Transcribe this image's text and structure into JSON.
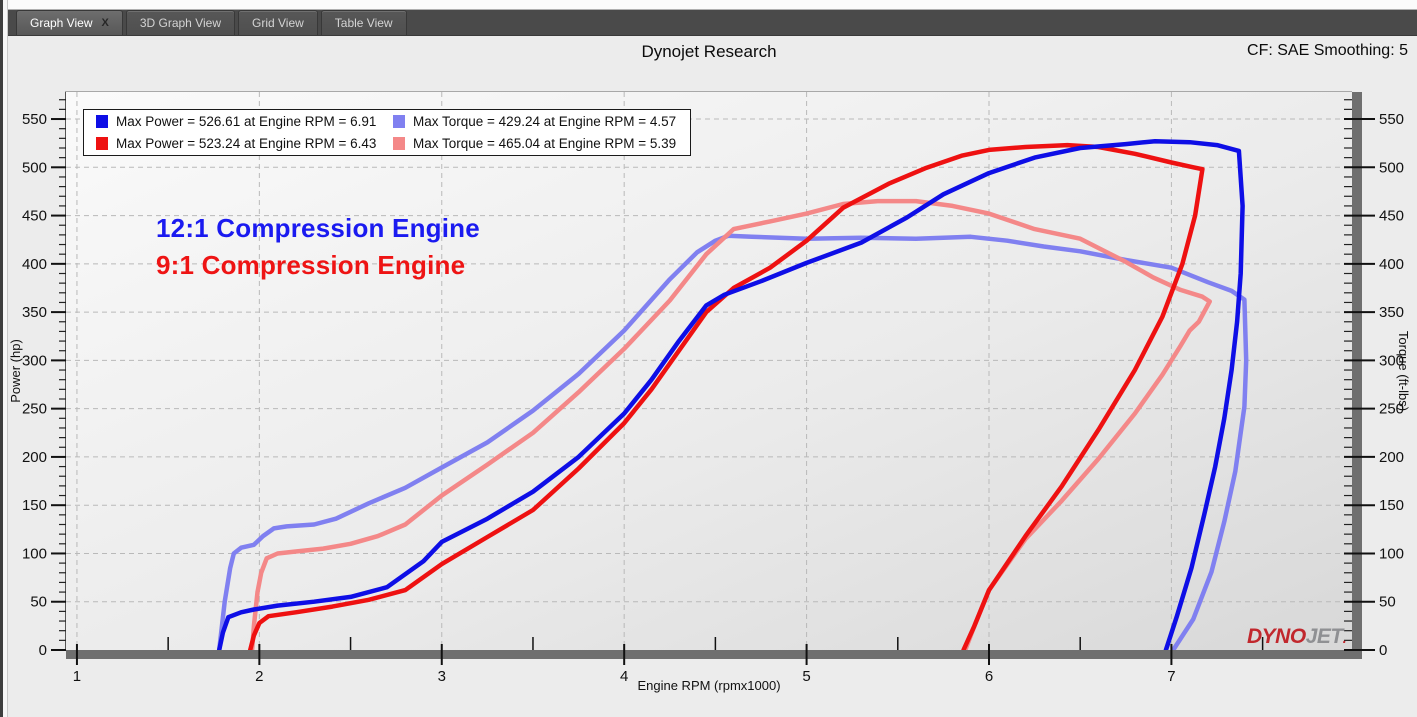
{
  "tabs": [
    {
      "label": "Graph View",
      "active": true,
      "closable": true
    },
    {
      "label": "3D Graph View",
      "active": false,
      "closable": false
    },
    {
      "label": "Grid View",
      "active": false,
      "closable": false
    },
    {
      "label": "Table View",
      "active": false,
      "closable": false
    }
  ],
  "header": {
    "title": "Dynojet Research",
    "cf_label": "CF: SAE Smoothing: 5"
  },
  "annotations": [
    {
      "text": "12:1 Compression Engine",
      "color": "#1a1af0"
    },
    {
      "text": "9:1 Compression Engine",
      "color": "#ee1414"
    }
  ],
  "logo": {
    "text_red": "DYNO",
    "text_gray": "JET",
    "dot": "."
  },
  "chart_data": {
    "type": "line",
    "title": "Dynojet Research",
    "xlabel": "Engine RPM (rpmx1000)",
    "ylabel_left": "Power (hp)",
    "ylabel_right": "Torque (ft-lbs)",
    "x_range": [
      0.94,
      7.99
    ],
    "y_range": [
      0,
      578
    ],
    "x_major_ticks": [
      1,
      2,
      3,
      4,
      5,
      6,
      7
    ],
    "x_minor_ticks": [
      1.5,
      2.5,
      3.5,
      4.5,
      5.5,
      6.5,
      7.5
    ],
    "y_major_ticks": [
      0,
      50,
      100,
      150,
      200,
      250,
      300,
      350,
      400,
      450,
      500,
      550
    ],
    "y_minor_step": 10,
    "grid": "dashed",
    "legend_position": "top-left",
    "legend": [
      {
        "series": "power-12-1",
        "label": "Max Power = 526.61 at Engine RPM = 6.91"
      },
      {
        "series": "power-9-1",
        "label": "Max Power = 523.24 at Engine RPM = 6.43"
      },
      {
        "series": "torque-12-1",
        "label": "Max Torque = 429.24 at Engine RPM = 4.57"
      },
      {
        "series": "torque-9-1",
        "label": "Max Torque = 465.04 at Engine RPM = 5.39"
      }
    ],
    "series": [
      {
        "name": "torque-12-1",
        "color": "#8080f0",
        "axis": "right",
        "max": 429.24,
        "max_rpm": 4.57,
        "points": [
          [
            1.78,
            0
          ],
          [
            1.81,
            50
          ],
          [
            1.84,
            85
          ],
          [
            1.86,
            100
          ],
          [
            1.9,
            106
          ],
          [
            1.97,
            109
          ],
          [
            2.02,
            118
          ],
          [
            2.08,
            126
          ],
          [
            2.15,
            128
          ],
          [
            2.3,
            130
          ],
          [
            2.42,
            136
          ],
          [
            2.6,
            152
          ],
          [
            2.8,
            168
          ],
          [
            3.0,
            189
          ],
          [
            3.25,
            215
          ],
          [
            3.5,
            248
          ],
          [
            3.75,
            286
          ],
          [
            4.0,
            331
          ],
          [
            4.25,
            384
          ],
          [
            4.4,
            412
          ],
          [
            4.5,
            424
          ],
          [
            4.57,
            429
          ],
          [
            4.7,
            428
          ],
          [
            5.0,
            426
          ],
          [
            5.3,
            427
          ],
          [
            5.6,
            426
          ],
          [
            5.9,
            428
          ],
          [
            6.1,
            424
          ],
          [
            6.3,
            418
          ],
          [
            6.5,
            413
          ],
          [
            6.75,
            404
          ],
          [
            7.0,
            396
          ],
          [
            7.2,
            381
          ],
          [
            7.33,
            372
          ],
          [
            7.4,
            363
          ],
          [
            7.41,
            300
          ],
          [
            7.4,
            252
          ],
          [
            7.38,
            225
          ],
          [
            7.35,
            185
          ],
          [
            7.29,
            133
          ],
          [
            7.22,
            81
          ],
          [
            7.12,
            32
          ],
          [
            7.01,
            0
          ]
        ]
      },
      {
        "name": "torque-9-1",
        "color": "#f48888",
        "axis": "right",
        "max": 465.04,
        "max_rpm": 5.39,
        "points": [
          [
            1.96,
            0
          ],
          [
            1.97,
            25
          ],
          [
            1.99,
            60
          ],
          [
            2.01,
            80
          ],
          [
            2.04,
            95
          ],
          [
            2.1,
            100
          ],
          [
            2.2,
            102
          ],
          [
            2.35,
            105
          ],
          [
            2.5,
            110
          ],
          [
            2.65,
            118
          ],
          [
            2.8,
            130
          ],
          [
            3.0,
            160
          ],
          [
            3.25,
            192
          ],
          [
            3.5,
            225
          ],
          [
            3.75,
            267
          ],
          [
            4.0,
            312
          ],
          [
            4.25,
            362
          ],
          [
            4.45,
            410
          ],
          [
            4.6,
            436
          ],
          [
            4.8,
            444
          ],
          [
            5.0,
            452
          ],
          [
            5.2,
            462
          ],
          [
            5.39,
            465
          ],
          [
            5.6,
            465
          ],
          [
            5.8,
            460
          ],
          [
            6.0,
            452
          ],
          [
            6.25,
            436
          ],
          [
            6.5,
            426
          ],
          [
            6.75,
            402
          ],
          [
            6.9,
            386
          ],
          [
            7.05,
            373
          ],
          [
            7.17,
            366
          ],
          [
            7.21,
            361
          ],
          [
            7.15,
            340
          ],
          [
            7.1,
            331
          ],
          [
            7.05,
            315
          ],
          [
            6.95,
            285
          ],
          [
            6.8,
            245
          ],
          [
            6.6,
            198
          ],
          [
            6.4,
            155
          ],
          [
            6.2,
            115
          ],
          [
            6.0,
            62
          ],
          [
            5.92,
            25
          ],
          [
            5.87,
            0
          ]
        ]
      },
      {
        "name": "power-9-1",
        "color": "#ee1111",
        "axis": "left",
        "max": 523.24,
        "max_rpm": 6.43,
        "points": [
          [
            1.95,
            0
          ],
          [
            1.97,
            15
          ],
          [
            2.0,
            28
          ],
          [
            2.05,
            35
          ],
          [
            2.2,
            39
          ],
          [
            2.4,
            45
          ],
          [
            2.6,
            52
          ],
          [
            2.8,
            62
          ],
          [
            3.0,
            89
          ],
          [
            3.25,
            117
          ],
          [
            3.5,
            145
          ],
          [
            3.75,
            188
          ],
          [
            4.0,
            235
          ],
          [
            4.15,
            270
          ],
          [
            4.3,
            310
          ],
          [
            4.45,
            350
          ],
          [
            4.6,
            375
          ],
          [
            4.8,
            396
          ],
          [
            5.0,
            424
          ],
          [
            5.2,
            458
          ],
          [
            5.45,
            483
          ],
          [
            5.65,
            499
          ],
          [
            5.85,
            512
          ],
          [
            6.0,
            518
          ],
          [
            6.2,
            521
          ],
          [
            6.43,
            523
          ],
          [
            6.6,
            521
          ],
          [
            6.8,
            514
          ],
          [
            7.0,
            505
          ],
          [
            7.12,
            500
          ],
          [
            7.17,
            498
          ],
          [
            7.13,
            450
          ],
          [
            7.06,
            400
          ],
          [
            6.95,
            345
          ],
          [
            6.8,
            290
          ],
          [
            6.6,
            228
          ],
          [
            6.4,
            170
          ],
          [
            6.2,
            118
          ],
          [
            6.0,
            62
          ],
          [
            5.92,
            25
          ],
          [
            5.86,
            0
          ]
        ]
      },
      {
        "name": "power-12-1",
        "color": "#0e0ee6",
        "axis": "left",
        "max": 526.61,
        "max_rpm": 6.91,
        "points": [
          [
            1.78,
            0
          ],
          [
            1.8,
            18
          ],
          [
            1.83,
            34
          ],
          [
            1.9,
            39
          ],
          [
            1.97,
            42
          ],
          [
            2.1,
            46
          ],
          [
            2.3,
            50
          ],
          [
            2.5,
            55
          ],
          [
            2.7,
            65
          ],
          [
            2.9,
            92
          ],
          [
            3.0,
            112
          ],
          [
            3.25,
            136
          ],
          [
            3.5,
            164
          ],
          [
            3.75,
            200
          ],
          [
            4.0,
            245
          ],
          [
            4.15,
            280
          ],
          [
            4.3,
            320
          ],
          [
            4.45,
            357
          ],
          [
            4.55,
            368
          ],
          [
            4.75,
            382
          ],
          [
            5.0,
            401
          ],
          [
            5.3,
            422
          ],
          [
            5.55,
            448
          ],
          [
            5.75,
            472
          ],
          [
            6.0,
            494
          ],
          [
            6.25,
            510
          ],
          [
            6.5,
            520
          ],
          [
            6.75,
            524
          ],
          [
            6.91,
            527
          ],
          [
            7.1,
            526
          ],
          [
            7.25,
            523
          ],
          [
            7.37,
            517
          ],
          [
            7.39,
            460
          ],
          [
            7.38,
            390
          ],
          [
            7.36,
            340
          ],
          [
            7.33,
            290
          ],
          [
            7.29,
            240
          ],
          [
            7.24,
            190
          ],
          [
            7.18,
            140
          ],
          [
            7.11,
            85
          ],
          [
            7.03,
            35
          ],
          [
            6.97,
            0
          ]
        ]
      }
    ]
  }
}
